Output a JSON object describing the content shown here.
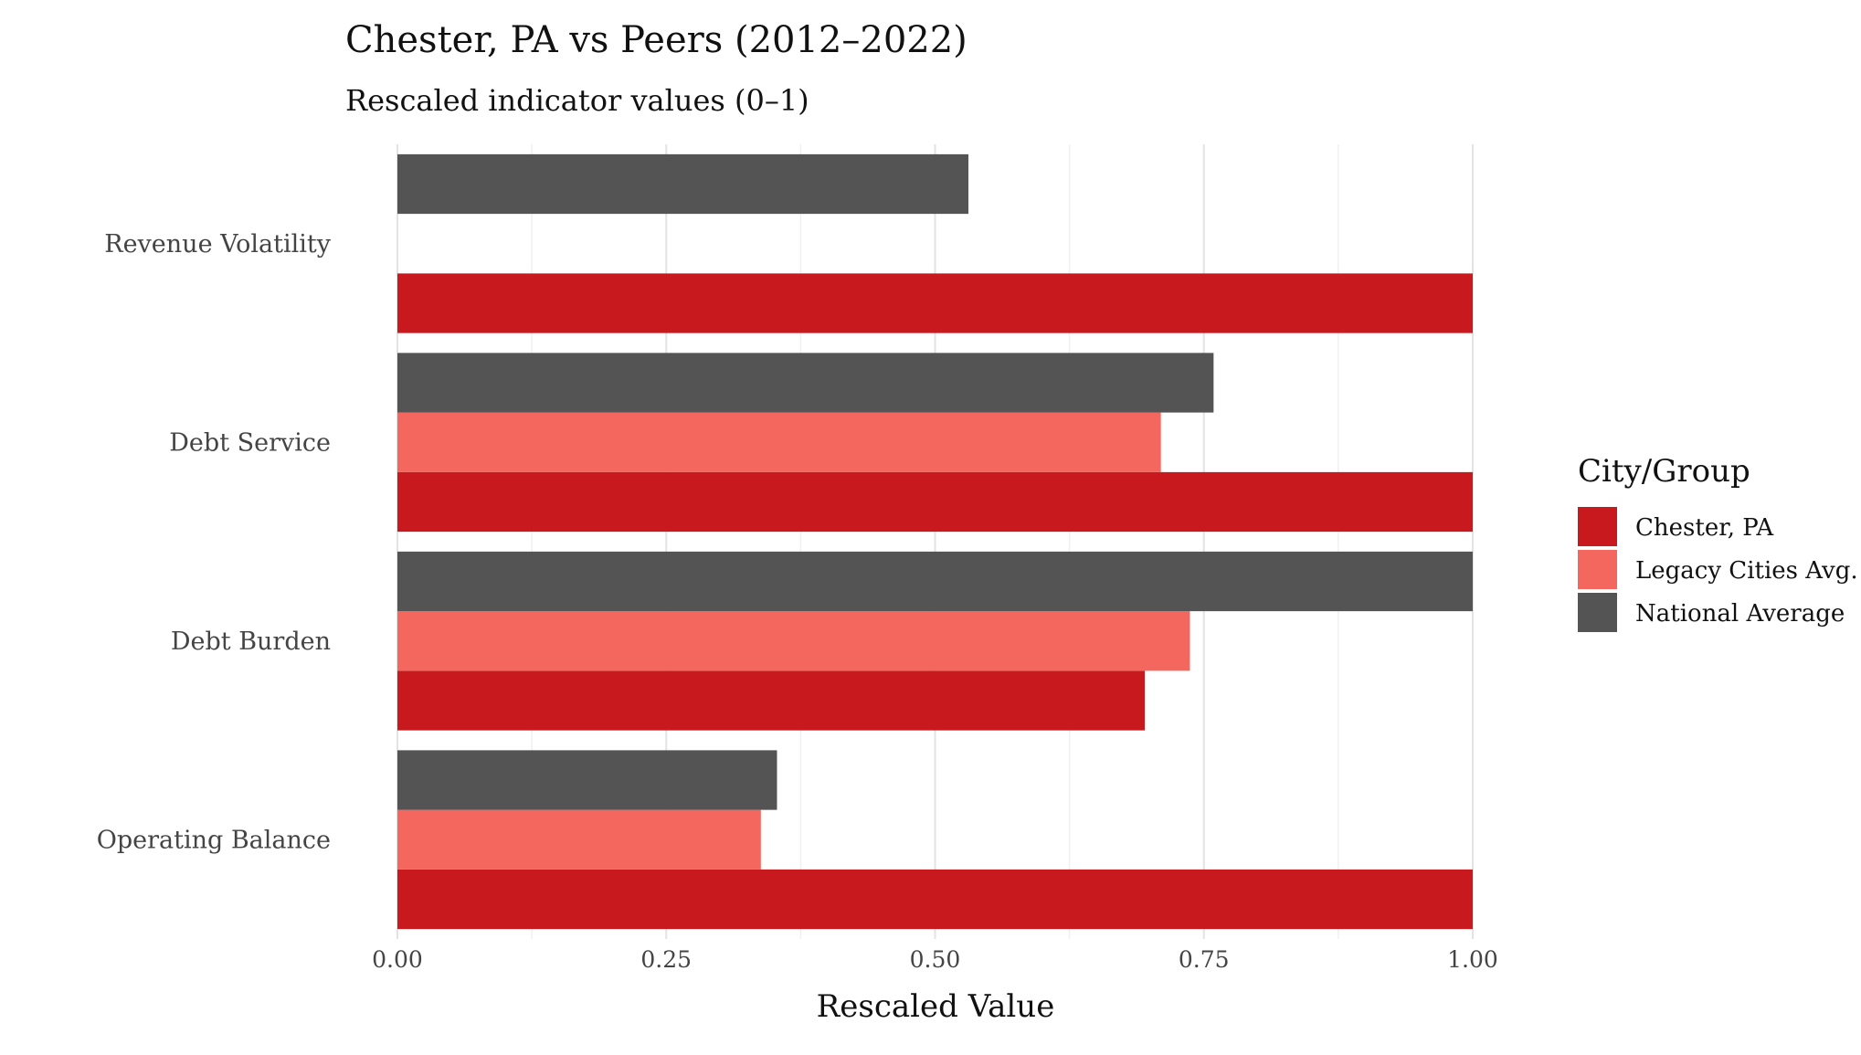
{
  "chart_data": {
    "type": "bar",
    "orientation": "horizontal",
    "title": "Chester, PA vs Peers (2012–2022)",
    "subtitle": "Rescaled indicator values (0–1)",
    "xlabel": "Rescaled Value",
    "ylabel": "",
    "xlim": [
      0,
      1
    ],
    "x_ticks": [
      "0.00",
      "0.25",
      "0.50",
      "0.75",
      "1.00"
    ],
    "grid": true,
    "categories": [
      "Revenue Volatility",
      "Debt Service",
      "Debt Burden",
      "Operating Balance"
    ],
    "series": [
      {
        "name": "Chester, PA",
        "color": "#c8191f",
        "values": [
          1.0,
          1.0,
          0.695,
          1.0
        ]
      },
      {
        "name": "Legacy Cities Avg.",
        "color": "#f4675f",
        "values": [
          null,
          0.71,
          0.737,
          0.338
        ]
      },
      {
        "name": "National Average",
        "color": "#545454",
        "values": [
          0.531,
          0.759,
          1.0,
          0.353
        ]
      }
    ],
    "legend": {
      "title": "City/Group",
      "position": "right",
      "items": [
        "Chester, PA",
        "Legacy Cities Avg.",
        "National Average"
      ]
    }
  }
}
